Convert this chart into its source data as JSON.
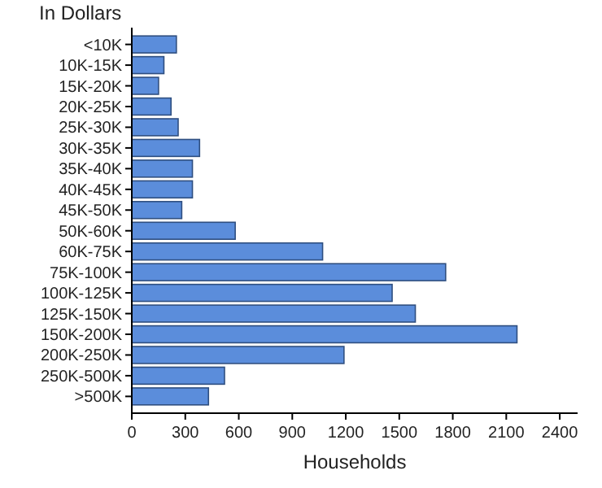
{
  "chart_data": {
    "type": "bar",
    "orientation": "horizontal",
    "ylabel": "In Dollars",
    "xlabel": "Households",
    "categories": [
      "<10K",
      "10K-15K",
      "15K-20K",
      "20K-25K",
      "25K-30K",
      "30K-35K",
      "35K-40K",
      "40K-45K",
      "45K-50K",
      "50K-60K",
      "60K-75K",
      "75K-100K",
      "100K-125K",
      "125K-150K",
      "150K-200K",
      "200K-250K",
      "250K-500K",
      ">500K"
    ],
    "values": [
      250,
      180,
      150,
      220,
      260,
      380,
      340,
      340,
      280,
      580,
      1070,
      1760,
      1460,
      1590,
      2160,
      1190,
      520,
      430
    ],
    "color": "#5b8ddb",
    "xlim": [
      0,
      2500
    ],
    "xticks": [
      0,
      300,
      600,
      900,
      1200,
      1500,
      1800,
      2100,
      2400
    ],
    "grid": false
  }
}
